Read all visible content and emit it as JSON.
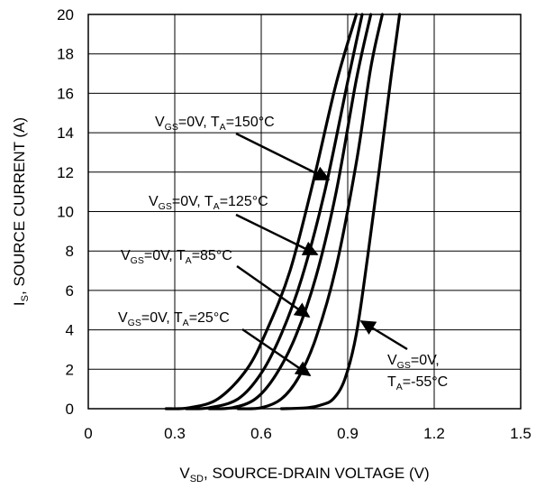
{
  "chart_data": {
    "type": "line",
    "title": "",
    "xlabel": {
      "main": "V",
      "sub": "SD",
      "rest": ", SOURCE-DRAIN VOLTAGE (V)"
    },
    "ylabel": {
      "main": "I",
      "sub": "S",
      "rest": ", SOURCE CURRENT (A)"
    },
    "xlim": [
      0,
      1.5
    ],
    "ylim": [
      0,
      20
    ],
    "xticks": [
      "0",
      "0.3",
      "0.6",
      "0.9",
      "1.2",
      "1.5"
    ],
    "yticks": [
      "0",
      "2",
      "4",
      "6",
      "8",
      "10",
      "12",
      "14",
      "16",
      "18",
      "20"
    ],
    "grid": true,
    "series": [
      {
        "x": [
          0.27,
          0.35,
          0.45,
          0.55,
          0.62,
          0.7,
          0.78,
          0.86,
          0.93
        ],
        "y": [
          0.0,
          0.05,
          0.5,
          2.0,
          4.0,
          7.0,
          11.5,
          16.5,
          20.0
        ]
      },
      {
        "x": [
          0.34,
          0.42,
          0.52,
          0.6,
          0.67,
          0.74,
          0.82,
          0.9,
          0.95
        ],
        "y": [
          0.0,
          0.05,
          0.5,
          1.8,
          3.8,
          6.6,
          11.0,
          16.6,
          20.0
        ]
      },
      {
        "x": [
          0.42,
          0.5,
          0.58,
          0.65,
          0.72,
          0.79,
          0.86,
          0.93,
          0.98
        ],
        "y": [
          0.0,
          0.05,
          0.5,
          1.7,
          3.7,
          6.7,
          11.0,
          16.7,
          20.0
        ]
      },
      {
        "x": [
          0.52,
          0.6,
          0.67,
          0.73,
          0.79,
          0.86,
          0.93,
          0.98,
          1.02
        ],
        "y": [
          0.0,
          0.05,
          0.5,
          1.6,
          3.6,
          7.2,
          12.5,
          17.3,
          20.0
        ]
      },
      {
        "x": [
          0.67,
          0.76,
          0.81,
          0.85,
          0.89,
          0.93,
          0.97,
          1.01,
          1.05,
          1.08
        ],
        "y": [
          0.0,
          0.05,
          0.2,
          0.5,
          1.5,
          3.8,
          7.8,
          12.2,
          16.8,
          20.0
        ]
      }
    ],
    "annotations": [
      {
        "parts": [
          [
            "V",
            ""
          ],
          [
            "GS",
            "sub"
          ],
          [
            "=0V, T",
            ""
          ],
          [
            "A",
            "sub"
          ],
          [
            "=150°C",
            ""
          ]
        ]
      },
      {
        "parts": [
          [
            "V",
            ""
          ],
          [
            "GS",
            "sub"
          ],
          [
            "=0V, T",
            ""
          ],
          [
            "A",
            "sub"
          ],
          [
            "=125°C",
            ""
          ]
        ]
      },
      {
        "parts": [
          [
            "V",
            ""
          ],
          [
            "GS",
            "sub"
          ],
          [
            "=0V, T",
            ""
          ],
          [
            "A",
            "sub"
          ],
          [
            "=85°C",
            ""
          ]
        ]
      },
      {
        "parts": [
          [
            "V",
            ""
          ],
          [
            "GS",
            "sub"
          ],
          [
            "=0V, T",
            ""
          ],
          [
            "A",
            "sub"
          ],
          [
            "=25°C",
            ""
          ]
        ]
      },
      {
        "lines": [
          [
            [
              "V",
              ""
            ],
            [
              "GS",
              "sub"
            ],
            [
              "=0V,",
              ""
            ]
          ],
          [
            [
              "T",
              ""
            ],
            [
              "A",
              "sub"
            ],
            [
              "=-55°C",
              ""
            ]
          ]
        ]
      }
    ]
  }
}
